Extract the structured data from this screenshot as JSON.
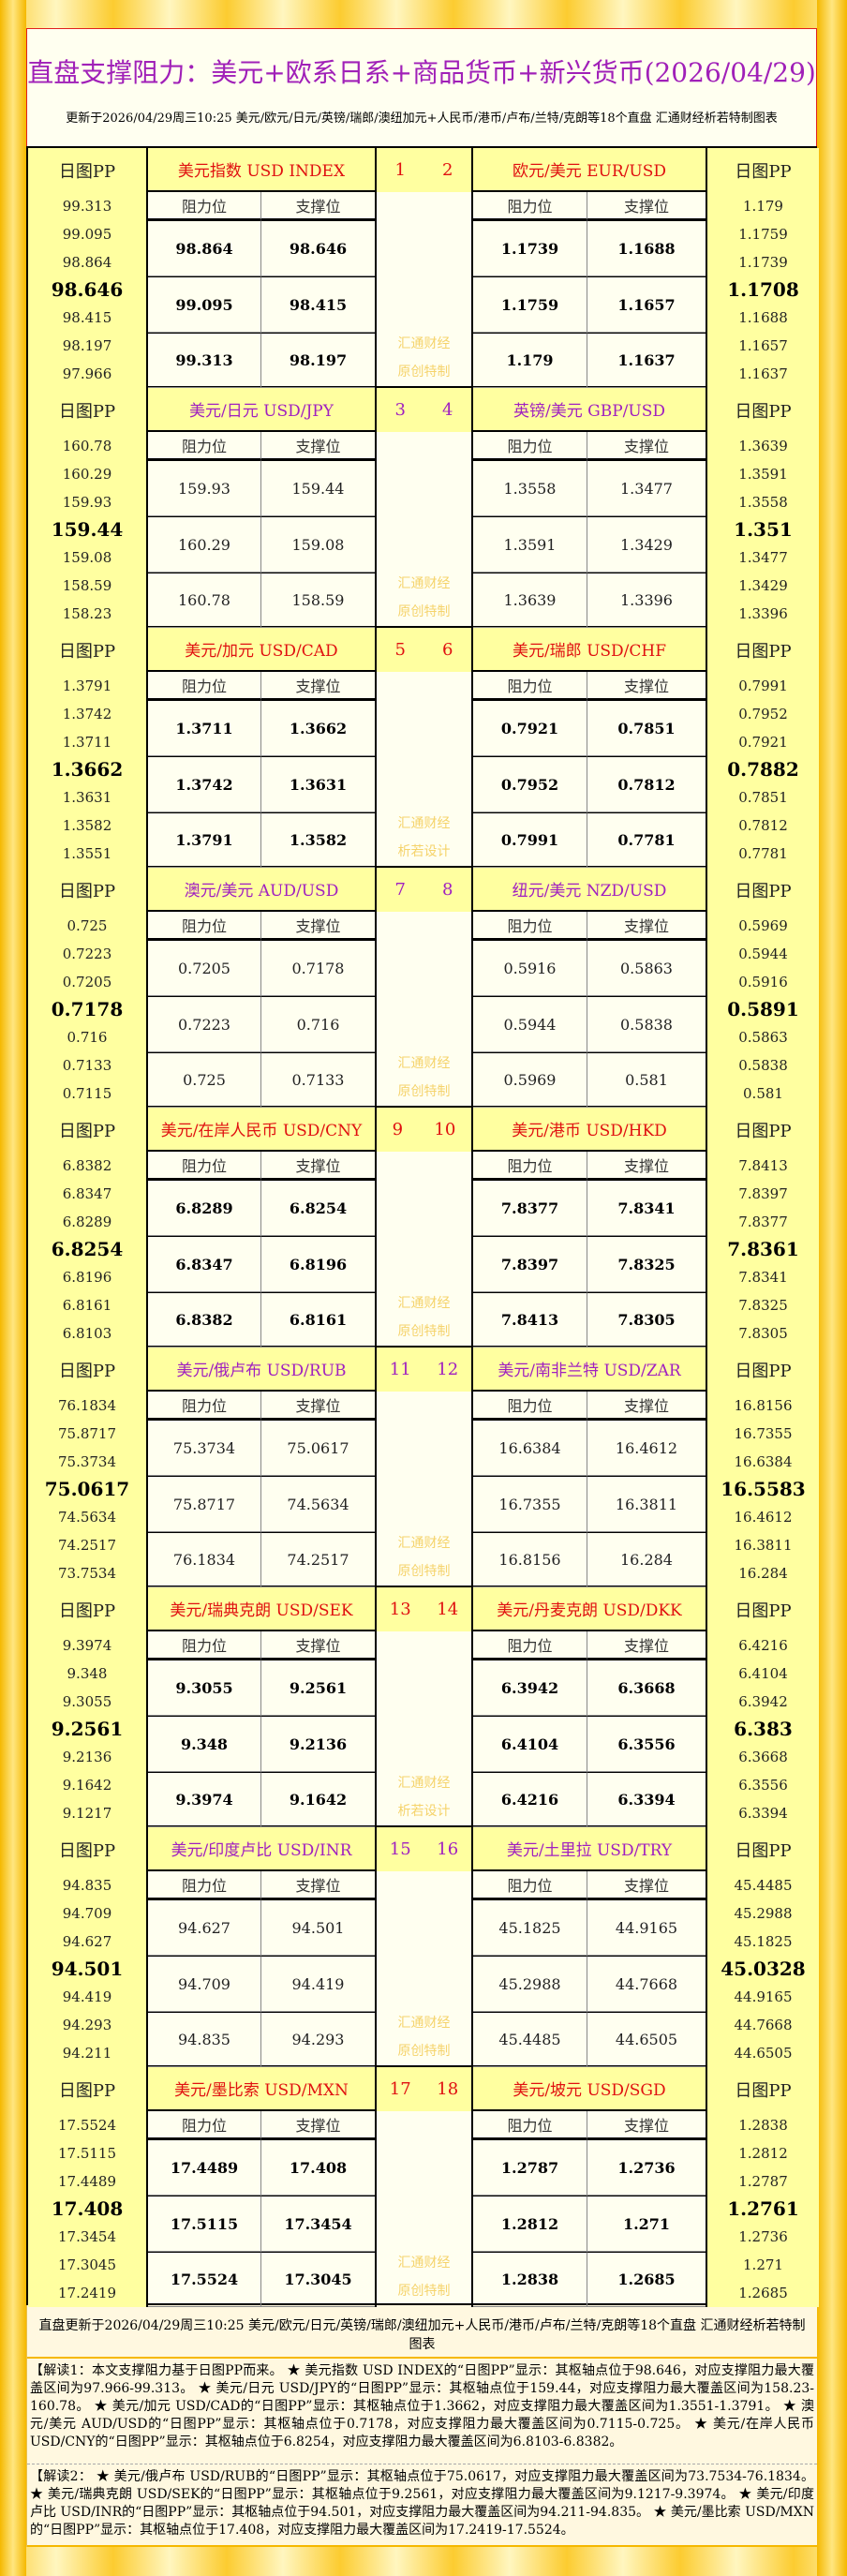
{
  "title": "直盘支撑阻力：美元+欧系日系+商品货币+新兴货币(2026/04/29)",
  "subtitle": "更新于2026/04/29周三10:25 美元/欧元/日元/英镑/瑞郎/澳纽加元+人民币/港币/卢布/兰特/克朗等18个直盘 汇通财经析若特制图表",
  "labels": {
    "pp": "日图PP",
    "resist": "阻力位",
    "support": "支撑位",
    "wm1": "汇通财经"
  },
  "colors": {
    "red": "#e01010",
    "purple": "#a020c0",
    "watermark": "#f5d36b"
  },
  "blocks": [
    {
      "style": "red",
      "watermark2": "原创特制",
      "left": {
        "name": "美元指数 USD INDEX",
        "num": "1",
        "pp": [
          "99.313",
          "99.095",
          "98.864",
          "98.646",
          "98.415",
          "98.197",
          "97.966"
        ],
        "levels": [
          [
            "98.864",
            "98.646"
          ],
          [
            "99.095",
            "98.415"
          ],
          [
            "99.313",
            "98.197"
          ]
        ]
      },
      "right": {
        "name": "欧元/美元 EUR/USD",
        "num": "2",
        "pp": [
          "1.179",
          "1.1759",
          "1.1739",
          "1.1708",
          "1.1688",
          "1.1657",
          "1.1637"
        ],
        "levels": [
          [
            "1.1739",
            "1.1688"
          ],
          [
            "1.1759",
            "1.1657"
          ],
          [
            "1.179",
            "1.1637"
          ]
        ]
      }
    },
    {
      "style": "purple",
      "watermark2": "原创特制",
      "left": {
        "name": "美元/日元 USD/JPY",
        "num": "3",
        "pp": [
          "160.78",
          "160.29",
          "159.93",
          "159.44",
          "159.08",
          "158.59",
          "158.23"
        ],
        "levels": [
          [
            "159.93",
            "159.44"
          ],
          [
            "160.29",
            "159.08"
          ],
          [
            "160.78",
            "158.59"
          ]
        ]
      },
      "right": {
        "name": "英镑/美元 GBP/USD",
        "num": "4",
        "pp": [
          "1.3639",
          "1.3591",
          "1.3558",
          "1.351",
          "1.3477",
          "1.3429",
          "1.3396"
        ],
        "levels": [
          [
            "1.3558",
            "1.3477"
          ],
          [
            "1.3591",
            "1.3429"
          ],
          [
            "1.3639",
            "1.3396"
          ]
        ]
      }
    },
    {
      "style": "red",
      "watermark2": "析若设计",
      "left": {
        "name": "美元/加元 USD/CAD",
        "num": "5",
        "pp": [
          "1.3791",
          "1.3742",
          "1.3711",
          "1.3662",
          "1.3631",
          "1.3582",
          "1.3551"
        ],
        "levels": [
          [
            "1.3711",
            "1.3662"
          ],
          [
            "1.3742",
            "1.3631"
          ],
          [
            "1.3791",
            "1.3582"
          ]
        ]
      },
      "right": {
        "name": "美元/瑞郎 USD/CHF",
        "num": "6",
        "pp": [
          "0.7991",
          "0.7952",
          "0.7921",
          "0.7882",
          "0.7851",
          "0.7812",
          "0.7781"
        ],
        "levels": [
          [
            "0.7921",
            "0.7851"
          ],
          [
            "0.7952",
            "0.7812"
          ],
          [
            "0.7991",
            "0.7781"
          ]
        ]
      }
    },
    {
      "style": "purple",
      "watermark2": "原创特制",
      "left": {
        "name": "澳元/美元 AUD/USD",
        "num": "7",
        "pp": [
          "0.725",
          "0.7223",
          "0.7205",
          "0.7178",
          "0.716",
          "0.7133",
          "0.7115"
        ],
        "levels": [
          [
            "0.7205",
            "0.7178"
          ],
          [
            "0.7223",
            "0.716"
          ],
          [
            "0.725",
            "0.7133"
          ]
        ]
      },
      "right": {
        "name": "纽元/美元 NZD/USD",
        "num": "8",
        "pp": [
          "0.5969",
          "0.5944",
          "0.5916",
          "0.5891",
          "0.5863",
          "0.5838",
          "0.581"
        ],
        "levels": [
          [
            "0.5916",
            "0.5863"
          ],
          [
            "0.5944",
            "0.5838"
          ],
          [
            "0.5969",
            "0.581"
          ]
        ]
      }
    },
    {
      "style": "red",
      "watermark2": "原创特制",
      "left": {
        "name": "美元/在岸人民币 USD/CNY",
        "num": "9",
        "pp": [
          "6.8382",
          "6.8347",
          "6.8289",
          "6.8254",
          "6.8196",
          "6.8161",
          "6.8103"
        ],
        "levels": [
          [
            "6.8289",
            "6.8254"
          ],
          [
            "6.8347",
            "6.8196"
          ],
          [
            "6.8382",
            "6.8161"
          ]
        ]
      },
      "right": {
        "name": "美元/港币 USD/HKD",
        "num": "10",
        "pp": [
          "7.8413",
          "7.8397",
          "7.8377",
          "7.8361",
          "7.8341",
          "7.8325",
          "7.8305"
        ],
        "levels": [
          [
            "7.8377",
            "7.8341"
          ],
          [
            "7.8397",
            "7.8325"
          ],
          [
            "7.8413",
            "7.8305"
          ]
        ]
      }
    },
    {
      "style": "purple",
      "watermark2": "原创特制",
      "left": {
        "name": "美元/俄卢布 USD/RUB",
        "num": "11",
        "pp": [
          "76.1834",
          "75.8717",
          "75.3734",
          "75.0617",
          "74.5634",
          "74.2517",
          "73.7534"
        ],
        "levels": [
          [
            "75.3734",
            "75.0617"
          ],
          [
            "75.8717",
            "74.5634"
          ],
          [
            "76.1834",
            "74.2517"
          ]
        ]
      },
      "right": {
        "name": "美元/南非兰特 USD/ZAR",
        "num": "12",
        "pp": [
          "16.8156",
          "16.7355",
          "16.6384",
          "16.5583",
          "16.4612",
          "16.3811",
          "16.284"
        ],
        "levels": [
          [
            "16.6384",
            "16.4612"
          ],
          [
            "16.7355",
            "16.3811"
          ],
          [
            "16.8156",
            "16.284"
          ]
        ]
      }
    },
    {
      "style": "red",
      "watermark2": "析若设计",
      "left": {
        "name": "美元/瑞典克朗 USD/SEK",
        "num": "13",
        "pp": [
          "9.3974",
          "9.348",
          "9.3055",
          "9.2561",
          "9.2136",
          "9.1642",
          "9.1217"
        ],
        "levels": [
          [
            "9.3055",
            "9.2561"
          ],
          [
            "9.348",
            "9.2136"
          ],
          [
            "9.3974",
            "9.1642"
          ]
        ]
      },
      "right": {
        "name": "美元/丹麦克朗 USD/DKK",
        "num": "14",
        "pp": [
          "6.4216",
          "6.4104",
          "6.3942",
          "6.383",
          "6.3668",
          "6.3556",
          "6.3394"
        ],
        "levels": [
          [
            "6.3942",
            "6.3668"
          ],
          [
            "6.4104",
            "6.3556"
          ],
          [
            "6.4216",
            "6.3394"
          ]
        ]
      }
    },
    {
      "style": "purple",
      "watermark2": "原创特制",
      "left": {
        "name": "美元/印度卢比 USD/INR",
        "num": "15",
        "pp": [
          "94.835",
          "94.709",
          "94.627",
          "94.501",
          "94.419",
          "94.293",
          "94.211"
        ],
        "levels": [
          [
            "94.627",
            "94.501"
          ],
          [
            "94.709",
            "94.419"
          ],
          [
            "94.835",
            "94.293"
          ]
        ]
      },
      "right": {
        "name": "美元/土里拉 USD/TRY",
        "num": "16",
        "pp": [
          "45.4485",
          "45.2988",
          "45.1825",
          "45.0328",
          "44.9165",
          "44.7668",
          "44.6505"
        ],
        "levels": [
          [
            "45.1825",
            "44.9165"
          ],
          [
            "45.2988",
            "44.7668"
          ],
          [
            "45.4485",
            "44.6505"
          ]
        ]
      }
    },
    {
      "style": "red",
      "watermark2": "原创特制",
      "left": {
        "name": "美元/墨比索 USD/MXN",
        "num": "17",
        "pp": [
          "17.5524",
          "17.5115",
          "17.4489",
          "17.408",
          "17.3454",
          "17.3045",
          "17.2419"
        ],
        "levels": [
          [
            "17.4489",
            "17.408"
          ],
          [
            "17.5115",
            "17.3454"
          ],
          [
            "17.5524",
            "17.3045"
          ]
        ]
      },
      "right": {
        "name": "美元/坡元 USD/SGD",
        "num": "18",
        "pp": [
          "1.2838",
          "1.2812",
          "1.2787",
          "1.2761",
          "1.2736",
          "1.271",
          "1.2685"
        ],
        "levels": [
          [
            "1.2787",
            "1.2736"
          ],
          [
            "1.2812",
            "1.271"
          ],
          [
            "1.2838",
            "1.2685"
          ]
        ]
      }
    }
  ],
  "footer": {
    "update": "直盘更新于2026/04/29周三10:25 美元/欧元/日元/英镑/瑞郎/澳纽加元+人民币/港币/卢布/兰特/克朗等18个直盘 汇通财经析若特制图表",
    "interp1": "【解读1：本文支撑阻力基于日图PP而来。 ★ 美元指数 USD INDEX的“日图PP”显示：其枢轴点位于98.646，对应支撑阻力最大覆盖区间为97.966-99.313。 ★ 美元/日元 USD/JPY的“日图PP”显示：其枢轴点位于159.44，对应支撑阻力最大覆盖区间为158.23-160.78。 ★ 美元/加元 USD/CAD的“日图PP”显示：其枢轴点位于1.3662，对应支撑阻力最大覆盖区间为1.3551-1.3791。 ★ 澳元/美元 AUD/USD的“日图PP”显示：其枢轴点位于0.7178，对应支撑阻力最大覆盖区间为0.7115-0.725。 ★ 美元/在岸人民币 USD/CNY的“日图PP”显示：其枢轴点位于6.8254，对应支撑阻力最大覆盖区间为6.8103-6.8382。",
    "interp2": "【解读2： ★ 美元/俄卢布 USD/RUB的“日图PP”显示：其枢轴点位于75.0617，对应支撑阻力最大覆盖区间为73.7534-76.1834。 ★ 美元/瑞典克朗 USD/SEK的“日图PP”显示：其枢轴点位于9.2561，对应支撑阻力最大覆盖区间为9.1217-9.3974。 ★ 美元/印度卢比 USD/INR的“日图PP”显示：其枢轴点位于94.501，对应支撑阻力最大覆盖区间为94.211-94.835。 ★ 美元/墨比索 USD/MXN的“日图PP”显示：其枢轴点位于17.408，对应支撑阻力最大覆盖区间为17.2419-17.5524。"
  }
}
